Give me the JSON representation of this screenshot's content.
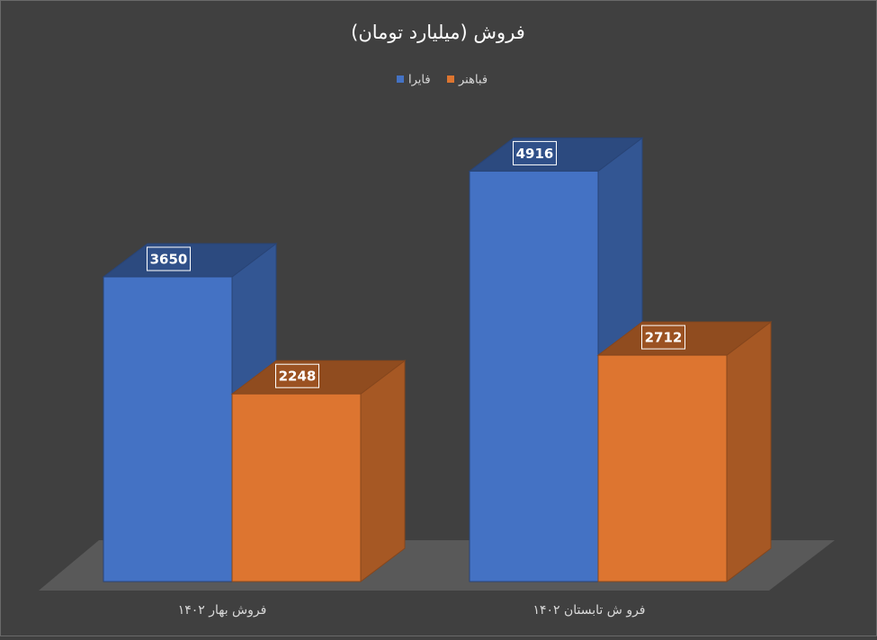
{
  "chart_data": {
    "type": "bar3d",
    "title": "فروش (میلیارد تومان)",
    "categories": [
      "فروش بهار ۱۴۰۲",
      "فرو ش تابستان ۱۴۰۲"
    ],
    "series": [
      {
        "name": "فایرا",
        "color": "#4472c4",
        "values": [
          3650,
          4916
        ]
      },
      {
        "name": "فباهنر",
        "color": "#dd7530",
        "values": [
          2248,
          2712
        ]
      }
    ]
  }
}
